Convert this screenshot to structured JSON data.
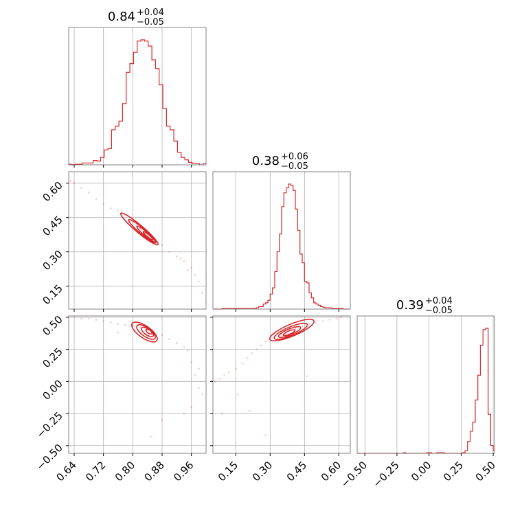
{
  "chart_data": {
    "type": "corner",
    "accent_color": "#d62728",
    "grid": true,
    "parameters": [
      {
        "title": "0.84",
        "plus": "+0.04",
        "minus": "−0.05"
      },
      {
        "title": "0.38",
        "plus": "+0.06",
        "minus": "−0.05"
      },
      {
        "title": "0.39",
        "plus": "+0.04",
        "minus": "−0.05"
      }
    ],
    "axes": {
      "p0": {
        "range": [
          0.625,
          1.0
        ],
        "ticks": [
          0.64,
          0.72,
          0.8,
          0.88,
          0.96
        ],
        "tick_labels": [
          "0.64",
          "0.72",
          "0.80",
          "0.88",
          "0.96"
        ]
      },
      "p1": {
        "range": [
          0.05,
          0.65
        ],
        "ticks": [
          0.15,
          0.3,
          0.45,
          0.6
        ],
        "tick_labels": [
          "0.15",
          "0.30",
          "0.45",
          "0.60"
        ]
      },
      "p2": {
        "range": [
          -0.56,
          0.51
        ],
        "ticks": [
          -0.5,
          -0.25,
          0.0,
          0.25,
          0.5
        ],
        "tick_labels": [
          "−0.50",
          "−0.25",
          "0.00",
          "0.25",
          "0.50"
        ]
      }
    },
    "histograms": [
      {
        "param": "p0",
        "x": [
          0.627,
          0.637,
          0.647,
          0.657,
          0.667,
          0.677,
          0.687,
          0.697,
          0.707,
          0.717,
          0.727,
          0.737,
          0.747,
          0.757,
          0.767,
          0.777,
          0.787,
          0.797,
          0.807,
          0.817,
          0.827,
          0.837,
          0.847,
          0.857,
          0.867,
          0.877,
          0.887,
          0.897,
          0.907,
          0.917,
          0.927,
          0.937,
          0.947,
          0.957,
          0.967,
          0.977,
          0.987,
          0.997
        ],
        "y": [
          0.5,
          0.2,
          0.5,
          0.5,
          1.5,
          1.5,
          1.5,
          3.5,
          3,
          6,
          12,
          13,
          28,
          31,
          35,
          49,
          74,
          81,
          90,
          99,
          100,
          99,
          95,
          84,
          77,
          64,
          45,
          31,
          28,
          19,
          10,
          6,
          4,
          2,
          1,
          1,
          0,
          1
        ]
      },
      {
        "param": "p1",
        "x": [
          0.055,
          0.065,
          0.075,
          0.085,
          0.095,
          0.105,
          0.115,
          0.125,
          0.135,
          0.145,
          0.155,
          0.165,
          0.175,
          0.185,
          0.195,
          0.205,
          0.215,
          0.225,
          0.235,
          0.245,
          0.255,
          0.265,
          0.275,
          0.285,
          0.295,
          0.305,
          0.315,
          0.325,
          0.335,
          0.345,
          0.355,
          0.365,
          0.375,
          0.385,
          0.395,
          0.405,
          0.415,
          0.425,
          0.435,
          0.445,
          0.455,
          0.465,
          0.475,
          0.485,
          0.495,
          0.505,
          0.515,
          0.525,
          0.535,
          0.545,
          0.555,
          0.565,
          0.575,
          0.585,
          0.595,
          0.605,
          0.615,
          0.625,
          0.635,
          0.645
        ],
        "y": [
          0,
          0,
          0,
          0,
          0.5,
          0.5,
          0.5,
          0.5,
          0.5,
          0.5,
          0.5,
          0.5,
          0.5,
          0.5,
          0.5,
          0.5,
          0.5,
          0.5,
          0.5,
          1,
          2,
          2,
          4,
          5,
          7,
          12,
          17,
          30,
          46,
          60,
          82,
          93,
          97,
          100,
          99,
          95,
          80,
          63,
          44,
          37,
          22,
          21,
          13,
          9,
          5,
          4,
          3,
          2,
          1.5,
          1,
          1,
          1,
          0.5,
          0.5,
          0.5,
          0.5,
          0.5,
          0,
          0,
          0
        ]
      },
      {
        "param": "p2",
        "x": [
          -0.55,
          -0.53,
          -0.51,
          -0.49,
          -0.47,
          -0.45,
          -0.43,
          -0.41,
          -0.39,
          -0.37,
          -0.35,
          -0.33,
          -0.31,
          -0.29,
          -0.27,
          -0.25,
          -0.23,
          -0.21,
          -0.19,
          -0.17,
          -0.15,
          -0.13,
          -0.11,
          -0.09,
          -0.07,
          -0.05,
          -0.03,
          -0.01,
          0.01,
          0.03,
          0.05,
          0.07,
          0.09,
          0.11,
          0.13,
          0.15,
          0.17,
          0.19,
          0.21,
          0.23,
          0.25,
          0.27,
          0.29,
          0.31,
          0.33,
          0.35,
          0.37,
          0.39,
          0.41,
          0.43,
          0.45,
          0.47,
          0.49,
          0.51
        ],
        "y": [
          0,
          0,
          0,
          0,
          0,
          0,
          0,
          0,
          0,
          0,
          0,
          0,
          0,
          0,
          0,
          0,
          0,
          0,
          0.5,
          0,
          0,
          0,
          0,
          0,
          0,
          0,
          0,
          0.5,
          0.5,
          0,
          0,
          0.5,
          0.5,
          0.5,
          0,
          0,
          0,
          0,
          0,
          0,
          0,
          0.5,
          2,
          9,
          17,
          24,
          41,
          60,
          83,
          95,
          96,
          30,
          6,
          2
        ]
      }
    ],
    "scatter_2d": [
      {
        "x_param": "p0",
        "y_param": "p1",
        "x": [
          0.63,
          0.64,
          0.66,
          0.68,
          0.7,
          0.72,
          0.74,
          0.76,
          0.78,
          0.8,
          0.82,
          0.84,
          0.86,
          0.88,
          0.9,
          0.92,
          0.94,
          0.95,
          0.97,
          0.98,
          0.99,
          1.0,
          0.93,
          0.96,
          0.87,
          0.85,
          0.83,
          0.81,
          0.79,
          0.77
        ],
        "y": [
          0.61,
          0.6,
          0.58,
          0.56,
          0.53,
          0.51,
          0.49,
          0.48,
          0.46,
          0.43,
          0.4,
          0.38,
          0.35,
          0.33,
          0.3,
          0.28,
          0.26,
          0.22,
          0.2,
          0.17,
          0.12,
          0.08,
          0.27,
          0.23,
          0.34,
          0.37,
          0.39,
          0.42,
          0.44,
          0.47
        ]
      },
      {
        "x_param": "p0",
        "y_param": "p2",
        "x": [
          0.64,
          0.66,
          0.68,
          0.7,
          0.72,
          0.74,
          0.76,
          0.78,
          0.8,
          0.82,
          0.84,
          0.86,
          0.88,
          0.9,
          0.92,
          0.94,
          0.95,
          0.96,
          0.97,
          0.98,
          0.99,
          0.96,
          0.94,
          0.98,
          0.85,
          0.76,
          0.88
        ],
        "y": [
          0.5,
          0.49,
          0.49,
          0.48,
          0.47,
          0.46,
          0.45,
          0.44,
          0.43,
          0.42,
          0.4,
          0.38,
          0.36,
          0.33,
          0.3,
          0.27,
          0.24,
          0.15,
          0.05,
          -0.05,
          -0.1,
          -0.2,
          -0.25,
          0.1,
          -0.43,
          0.38,
          -0.3
        ]
      },
      {
        "x_param": "p1",
        "y_param": "p2",
        "x": [
          0.06,
          0.08,
          0.1,
          0.12,
          0.15,
          0.18,
          0.2,
          0.22,
          0.24,
          0.26,
          0.28,
          0.3,
          0.32,
          0.35,
          0.38,
          0.41,
          0.44,
          0.47,
          0.5,
          0.53,
          0.56,
          0.59,
          0.61,
          0.09,
          0.16,
          0.21,
          0.28,
          0.46
        ],
        "y": [
          0.0,
          0.02,
          0.05,
          0.07,
          0.1,
          0.14,
          0.18,
          0.22,
          0.25,
          0.28,
          0.31,
          0.33,
          0.35,
          0.37,
          0.39,
          0.41,
          0.43,
          0.45,
          0.46,
          0.47,
          0.48,
          0.49,
          0.5,
          -0.25,
          -0.1,
          -0.23,
          -0.42,
          0.04
        ]
      }
    ],
    "contours_2d": [
      {
        "x_param": "p0",
        "y_param": "p1",
        "ellipses": [
          {
            "cx": 0.818,
            "cy": 0.4,
            "a": 0.085,
            "b": 0.013,
            "angle_data": [
              1,
              -1.35
            ]
          },
          {
            "cx": 0.826,
            "cy": 0.39,
            "a": 0.062,
            "b": 0.01,
            "angle_data": [
              1,
              -1.35
            ]
          },
          {
            "cx": 0.836,
            "cy": 0.378,
            "a": 0.042,
            "b": 0.007,
            "angle_data": [
              1,
              -1.35
            ]
          },
          {
            "cx": 0.842,
            "cy": 0.37,
            "a": 0.022,
            "b": 0.004,
            "angle_data": [
              1,
              -1.35
            ]
          }
        ]
      },
      {
        "x_param": "p0",
        "y_param": "p2",
        "ellipses": [
          {
            "cx": 0.832,
            "cy": 0.385,
            "a": 0.075,
            "b": 0.03,
            "angle_data": [
              1,
              -2.0
            ]
          },
          {
            "cx": 0.836,
            "cy": 0.385,
            "a": 0.055,
            "b": 0.022,
            "angle_data": [
              1,
              -2.0
            ]
          },
          {
            "cx": 0.84,
            "cy": 0.385,
            "a": 0.035,
            "b": 0.015,
            "angle_data": [
              1,
              -2.0
            ]
          },
          {
            "cx": 0.844,
            "cy": 0.388,
            "a": 0.018,
            "b": 0.008,
            "angle_data": [
              1,
              -2.0
            ]
          }
        ]
      },
      {
        "x_param": "p1",
        "y_param": "p2",
        "ellipses": [
          {
            "cx": 0.395,
            "cy": 0.4,
            "a": 0.12,
            "b": 0.03,
            "angle_data": [
              1,
              0.75
            ]
          },
          {
            "cx": 0.39,
            "cy": 0.39,
            "a": 0.09,
            "b": 0.022,
            "angle_data": [
              1,
              0.75
            ]
          },
          {
            "cx": 0.385,
            "cy": 0.385,
            "a": 0.06,
            "b": 0.015,
            "angle_data": [
              1,
              0.75
            ]
          },
          {
            "cx": 0.383,
            "cy": 0.38,
            "a": 0.032,
            "b": 0.008,
            "angle_data": [
              1,
              0.75
            ]
          }
        ]
      }
    ]
  }
}
